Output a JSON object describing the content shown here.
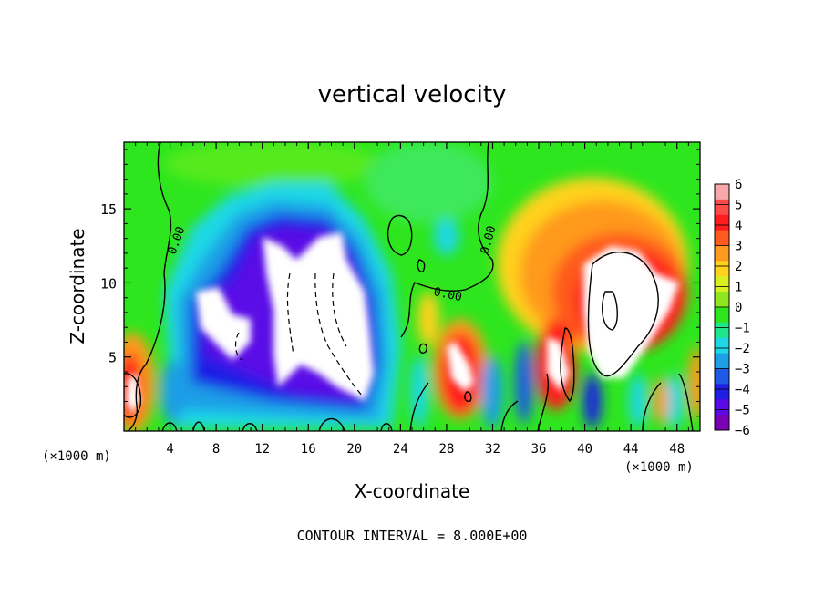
{
  "chart_data": {
    "type": "heatmap",
    "title": "vertical velocity",
    "xlabel": "X-coordinate",
    "ylabel": "Z-coordinate",
    "x_unit_left": "(×1000 m)",
    "x_unit_right": "(×1000 m)",
    "xlim": [
      0,
      50
    ],
    "ylim": [
      0,
      19.5
    ],
    "x_ticks": [
      4,
      8,
      12,
      16,
      20,
      24,
      28,
      32,
      36,
      40,
      44,
      48
    ],
    "y_ticks": [
      5,
      10,
      15
    ],
    "colorbar": {
      "ticks": [
        6,
        5,
        4,
        3,
        2,
        1,
        0,
        -1,
        -2,
        -3,
        -4,
        -5,
        -6
      ],
      "range": [
        -6,
        6
      ],
      "colors": [
        "#f7a8a8",
        "#ff4a4a",
        "#ff1e1e",
        "#ff5a1e",
        "#ff9a1e",
        "#ffd21e",
        "#d8f01e",
        "#90e61e",
        "#2ee61e",
        "#1ee68c",
        "#1ed8e6",
        "#1e9ee6",
        "#1e5ae6",
        "#1e1ee6",
        "#5a0ae6",
        "#7a00b4"
      ]
    },
    "contour_label": "0.00",
    "footer": "CONTOUR INTERVAL = 8.000E+00",
    "features": [
      {
        "x": 2.0,
        "z": 3.0,
        "w": 5.0
      },
      {
        "x": 9.5,
        "z": 7.5,
        "w": -7.0
      },
      {
        "x": 15.0,
        "z": 10.5,
        "w": -8.0
      },
      {
        "x": 18.0,
        "z": 9.0,
        "w": -7.5
      },
      {
        "x": 20.5,
        "z": 4.5,
        "w": -5.5
      },
      {
        "x": 28.5,
        "z": 4.5,
        "w": 6.0
      },
      {
        "x": 43.0,
        "z": 9.0,
        "w": 8.0
      },
      {
        "x": 37.5,
        "z": 3.5,
        "w": 6.0
      },
      {
        "x": 34.0,
        "z": 2.0,
        "w": -3.0
      }
    ]
  }
}
